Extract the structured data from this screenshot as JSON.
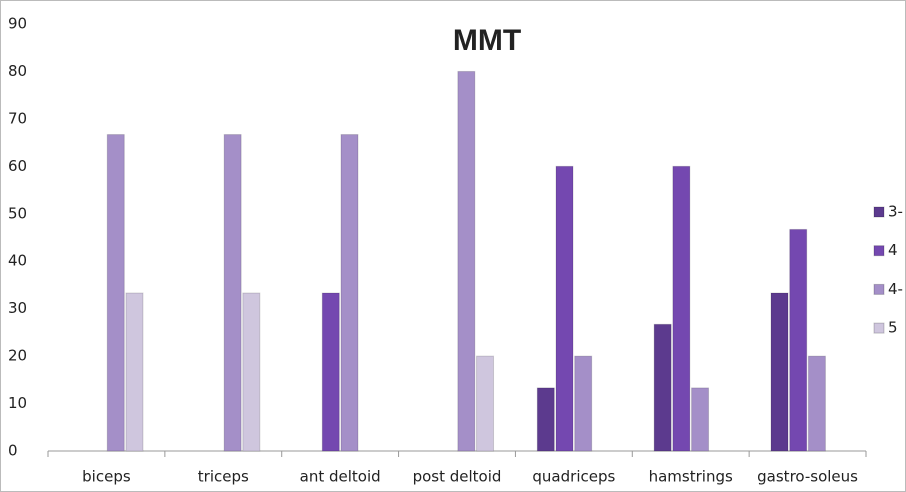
{
  "chart_data": {
    "type": "bar",
    "title": "MMT",
    "categories": [
      "biceps",
      "triceps",
      "ant deltoid",
      "post deltoid",
      "quadriceps",
      "hamstrings",
      "gastro-soleus"
    ],
    "series": [
      {
        "name": "3-",
        "color": "#5c3a8e",
        "values": [
          null,
          null,
          null,
          null,
          13.3,
          26.7,
          33.3
        ]
      },
      {
        "name": "4",
        "color": "#7448b0",
        "values": [
          null,
          null,
          33.3,
          null,
          60,
          60,
          46.7
        ]
      },
      {
        "name": "4-",
        "color": "#a48fc8",
        "values": [
          66.7,
          66.7,
          66.7,
          80,
          20,
          13.3,
          20
        ]
      },
      {
        "name": "5",
        "color": "#cfc6de",
        "values": [
          33.3,
          33.3,
          null,
          20,
          null,
          null,
          null
        ]
      }
    ],
    "ylim": [
      0,
      90
    ],
    "yticks": [
      0,
      10,
      20,
      30,
      40,
      50,
      60,
      70,
      80,
      90
    ],
    "legend": "right"
  }
}
